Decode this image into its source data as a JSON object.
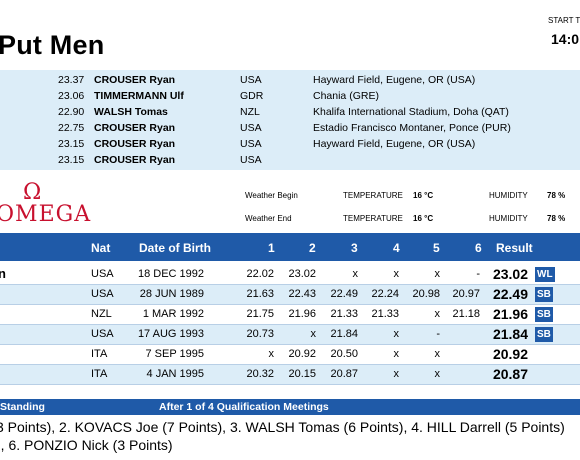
{
  "header": {
    "title": "Put Men",
    "start_label": "START T",
    "start_time": "14:0"
  },
  "records": [
    {
      "mark": "23.37",
      "name": "CROUSER Ryan",
      "nat": "USA",
      "venue": "Hayward Field, Eugene, OR (USA)"
    },
    {
      "mark": "23.06",
      "name": "TIMMERMANN Ulf",
      "nat": "GDR",
      "venue": "Chania (GRE)"
    },
    {
      "mark": "22.90",
      "name": "WALSH Tomas",
      "nat": "NZL",
      "venue": "Khalifa International Stadium, Doha (QAT)"
    },
    {
      "mark": "22.75",
      "name": "CROUSER Ryan",
      "nat": "USA",
      "venue": "Estadio Francisco Montaner, Ponce (PUR)"
    },
    {
      "mark": "23.15",
      "name": "CROUSER Ryan",
      "nat": "USA",
      "venue": "Hayward Field, Eugene, OR (USA)"
    },
    {
      "mark": "23.15",
      "name": "CROUSER Ryan",
      "nat": "USA",
      "venue": ""
    }
  ],
  "logo": {
    "symbol": "Ω",
    "word": "OMEGA"
  },
  "weather": {
    "begin_label": "Weather Begin",
    "end_label": "Weather End",
    "temp_label": "TEMPERATURE",
    "temp_begin": "16 °C",
    "temp_end": "16 °C",
    "humidity_label": "HUMIDITY",
    "humidity_begin": "78 %",
    "humidity_end": "78 %"
  },
  "table": {
    "headers": {
      "nat": "Nat",
      "dob": "Date of Birth",
      "a1": "1",
      "a2": "2",
      "a3": "3",
      "a4": "4",
      "a5": "5",
      "a6": "6",
      "result": "Result"
    },
    "rows": [
      {
        "name": "n",
        "nat": "USA",
        "dob": "18 DEC 1992",
        "a": [
          "22.02",
          "23.02",
          "x",
          "x",
          "x",
          "-"
        ],
        "result": "23.02",
        "badge": "WL"
      },
      {
        "name": "",
        "nat": "USA",
        "dob": "28 JUN 1989",
        "a": [
          "21.63",
          "22.43",
          "22.49",
          "22.24",
          "20.98",
          "20.97"
        ],
        "result": "22.49",
        "badge": "SB"
      },
      {
        "name": "",
        "nat": "NZL",
        "dob": "1 MAR 1992",
        "a": [
          "21.75",
          "21.96",
          "21.33",
          "21.33",
          "x",
          "21.18"
        ],
        "result": "21.96",
        "badge": "SB"
      },
      {
        "name": "",
        "nat": "USA",
        "dob": "17 AUG 1993",
        "a": [
          "20.73",
          "x",
          "21.84",
          "x",
          "-",
          ""
        ],
        "result": "21.84",
        "badge": "SB"
      },
      {
        "name": "",
        "nat": "ITA",
        "dob": "7 SEP 1995",
        "a": [
          "x",
          "20.92",
          "20.50",
          "x",
          "x",
          ""
        ],
        "result": "20.92",
        "badge": ""
      },
      {
        "name": "",
        "nat": "ITA",
        "dob": "4 JAN 1995",
        "a": [
          "20.32",
          "20.15",
          "20.87",
          "x",
          "x",
          ""
        ],
        "result": "20.87",
        "badge": ""
      }
    ]
  },
  "standing": {
    "label": "Standing",
    "subtitle": "After 1 of 4 Qualification Meetings",
    "line1": "3 Points), 2. KOVACS Joe (7 Points), 3. WALSH Tomas (6 Points), 4. HILL Darrell (5 Points)",
    "line2": "), 6. PONZIO Nick (3 Points)"
  },
  "colors": {
    "header_blue": "#1f5aa8",
    "light_blue": "#dcedf8",
    "omega_red": "#c8102e"
  }
}
